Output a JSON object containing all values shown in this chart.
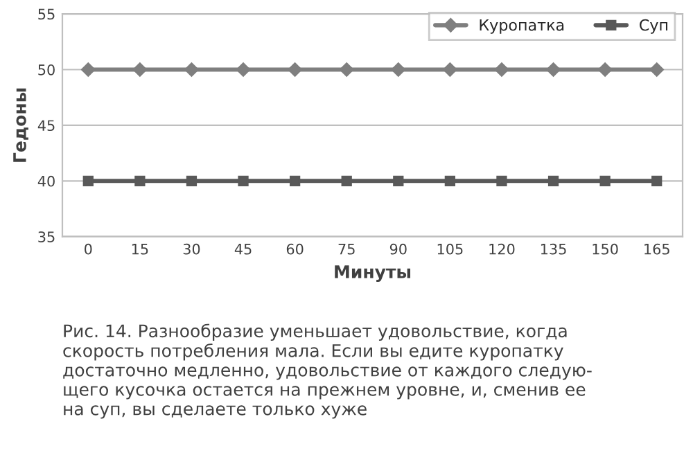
{
  "chart_data": {
    "type": "line",
    "xlabel": "Минуты",
    "ylabel": "Гедоны",
    "categories": [
      "0",
      "15",
      "30",
      "45",
      "60",
      "75",
      "90",
      "105",
      "120",
      "135",
      "150",
      "165"
    ],
    "series": [
      {
        "name": "Куропатка",
        "color": "#7f7f7f",
        "marker": "diamond",
        "values": [
          50,
          50,
          50,
          50,
          50,
          50,
          50,
          50,
          50,
          50,
          50,
          50
        ]
      },
      {
        "name": "Суп",
        "color": "#595959",
        "marker": "square",
        "values": [
          40,
          40,
          40,
          40,
          40,
          40,
          40,
          40,
          40,
          40,
          40,
          40
        ]
      }
    ],
    "ylim": [
      35,
      55
    ],
    "yticks": [
      35,
      40,
      45,
      50,
      55
    ],
    "grid": "y",
    "legend": "top right",
    "line_style": "solid",
    "annotations": [
      "Рис. 14. Разнообразие уменьшает удовольствие, когда\nскорость потребления мала. Если вы едите куропатку\nдостаточно медленно, удовольствие от каждого следую-\nщего кусочка остается на прежнем уровне, и, сменив ее\nна суп, вы сделаете только хуже"
    ]
  }
}
